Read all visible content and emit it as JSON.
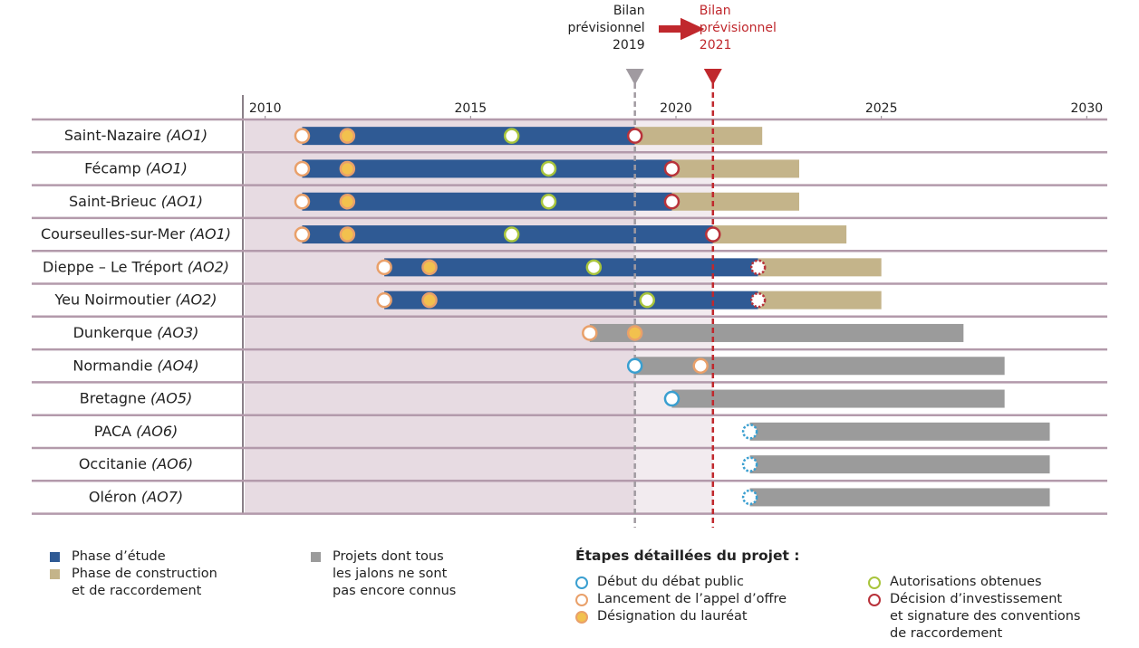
{
  "chart_data": {
    "type": "gantt",
    "xlim": [
      2009.5,
      2030.5
    ],
    "xticks": [
      2010,
      2015,
      2020,
      2025,
      2030
    ],
    "categories": [
      {
        "name": "Saint-Nazaire",
        "tag": "(AO1)"
      },
      {
        "name": "Fécamp",
        "tag": "(AO1)"
      },
      {
        "name": "Saint-Brieuc",
        "tag": "(AO1)"
      },
      {
        "name": "Courseulles-sur-Mer",
        "tag": "(AO1)"
      },
      {
        "name": "Dieppe – Le Tréport",
        "tag": "(AO2)"
      },
      {
        "name": "Yeu Noirmoutier",
        "tag": "(AO2)"
      },
      {
        "name": "Dunkerque",
        "tag": "(AO3)"
      },
      {
        "name": "Normandie",
        "tag": "(AO4)"
      },
      {
        "name": "Bretagne",
        "tag": "(AO5)"
      },
      {
        "name": "PACA",
        "tag": "(AO6)"
      },
      {
        "name": "Occitanie",
        "tag": "(AO6)"
      },
      {
        "name": "Oléron",
        "tag": "(AO7)"
      }
    ],
    "reference_lines": [
      {
        "label": [
          "Bilan",
          "prévisionnel",
          "2019"
        ],
        "x": 2019.0,
        "color": "#a09aa0"
      },
      {
        "label": [
          "Bilan",
          "prévisionnel",
          "2021"
        ],
        "x": 2020.9,
        "color": "#c0282d"
      }
    ],
    "phases": [
      {
        "name": "Phase d’étude",
        "color": "#2f5a94",
        "values": [
          [
            2010.9,
            2019.0
          ],
          [
            2010.9,
            2019.9
          ],
          [
            2010.9,
            2019.9
          ],
          [
            2010.9,
            2020.9
          ],
          [
            2012.9,
            2022.0
          ],
          [
            2012.9,
            2022.0
          ],
          null,
          null,
          null,
          null,
          null,
          null
        ]
      },
      {
        "name": "Phase de construction\net de raccordement",
        "color": "#c4b48a",
        "values": [
          [
            2019.0,
            2022.1
          ],
          [
            2019.9,
            2023.0
          ],
          [
            2019.9,
            2023.0
          ],
          [
            2020.9,
            2024.15
          ],
          [
            2022.0,
            2025.0
          ],
          [
            2022.0,
            2025.0
          ],
          null,
          null,
          null,
          null,
          null,
          null
        ]
      },
      {
        "name": "Projets dont tous\nles jalons ne sont\npas encore connus",
        "color": "#9b9b9b",
        "values": [
          null,
          null,
          null,
          null,
          null,
          null,
          [
            2017.9,
            2027.0
          ],
          [
            2019.0,
            2028.0
          ],
          [
            2019.9,
            2028.0
          ],
          [
            2021.8,
            2029.1
          ],
          [
            2021.8,
            2029.1
          ],
          [
            2021.8,
            2029.1
          ]
        ]
      }
    ],
    "steps_title": "Étapes détaillées du projet :",
    "steps": [
      {
        "name": "Début du débat public",
        "color": "#3a9fd0",
        "fill": "#ffffff",
        "values": [
          null,
          null,
          null,
          null,
          null,
          null,
          null,
          2019.0,
          2019.9,
          2021.8,
          2021.8,
          2021.8
        ],
        "dashed": [
          false,
          false,
          false,
          false,
          false,
          false,
          false,
          false,
          false,
          true,
          true,
          true
        ]
      },
      {
        "name": "Lancement de l’appel d’offre",
        "color": "#e9a06a",
        "fill": "#ffffff",
        "values": [
          2010.9,
          2010.9,
          2010.9,
          2010.9,
          2012.9,
          2012.9,
          2017.9,
          2020.6,
          null,
          null,
          null,
          null
        ],
        "dashed": [
          false,
          false,
          false,
          false,
          false,
          false,
          false,
          false,
          false,
          false,
          false,
          false
        ]
      },
      {
        "name": "Désignation du lauréat",
        "color": "#e9a06a",
        "fill": "#f2c14e",
        "values": [
          2012.0,
          2012.0,
          2012.0,
          2012.0,
          2014.0,
          2014.0,
          2019.0,
          null,
          null,
          null,
          null,
          null
        ],
        "dashed": [
          false,
          false,
          false,
          false,
          false,
          false,
          false,
          false,
          false,
          false,
          false,
          false
        ]
      },
      {
        "name": "Autorisations obtenues",
        "color": "#a8c43c",
        "fill": "#ffffff",
        "values": [
          2016.0,
          2016.9,
          2016.9,
          2016.0,
          2018.0,
          2019.3,
          null,
          null,
          null,
          null,
          null,
          null
        ],
        "dashed": [
          false,
          false,
          false,
          false,
          false,
          false,
          false,
          false,
          false,
          false,
          false,
          false
        ]
      },
      {
        "name": "Décision d’investissement\net signature des conventions\nde raccordement",
        "color": "#b8323a",
        "fill": "#ffffff",
        "values": [
          2019.0,
          2019.9,
          2019.9,
          2020.9,
          2022.0,
          2022.0,
          null,
          null,
          null,
          null,
          null,
          null
        ],
        "dashed": [
          false,
          false,
          false,
          false,
          true,
          true,
          false,
          false,
          false,
          false,
          false,
          false
        ]
      }
    ]
  }
}
